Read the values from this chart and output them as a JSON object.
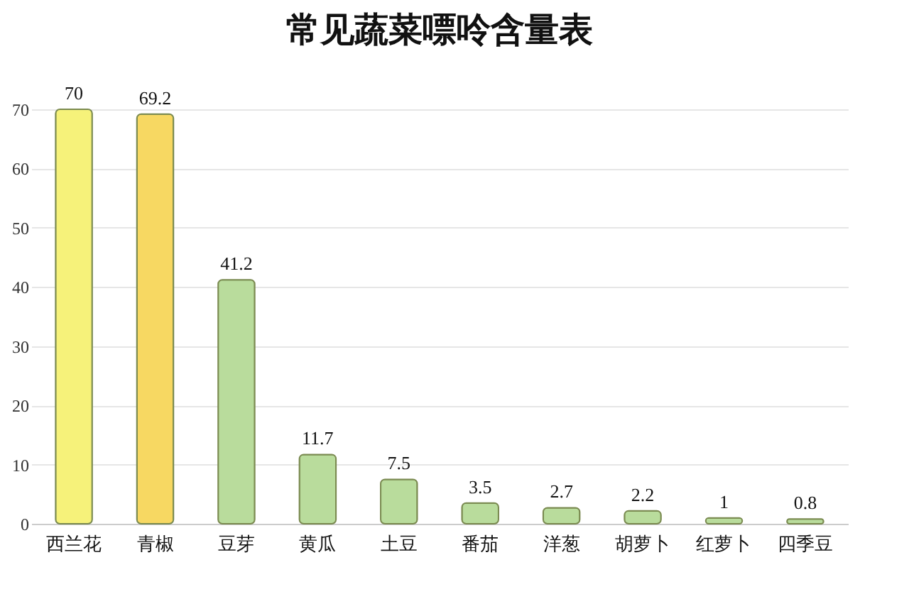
{
  "chart_data": {
    "type": "bar",
    "title": "常见蔬菜嘌呤含量表",
    "categories": [
      "西兰花",
      "青椒",
      "豆芽",
      "黄瓜",
      "土豆",
      "番茄",
      "洋葱",
      "胡萝卜",
      "红萝卜",
      "四季豆"
    ],
    "values": [
      70,
      69.2,
      41.2,
      11.7,
      7.5,
      3.5,
      2.7,
      2.2,
      1,
      0.8
    ],
    "colors": [
      "#f6f27a",
      "#f7d862",
      "#b9dc9c",
      "#b9dc9c",
      "#b9dc9c",
      "#b9dc9c",
      "#b9dc9c",
      "#b9dc9c",
      "#b9dc9c",
      "#b9dc9c"
    ],
    "ylim": [
      0,
      70
    ],
    "yticks": [
      0,
      10,
      20,
      30,
      40,
      50,
      60,
      70
    ],
    "grid": "y",
    "data_labels": true
  }
}
